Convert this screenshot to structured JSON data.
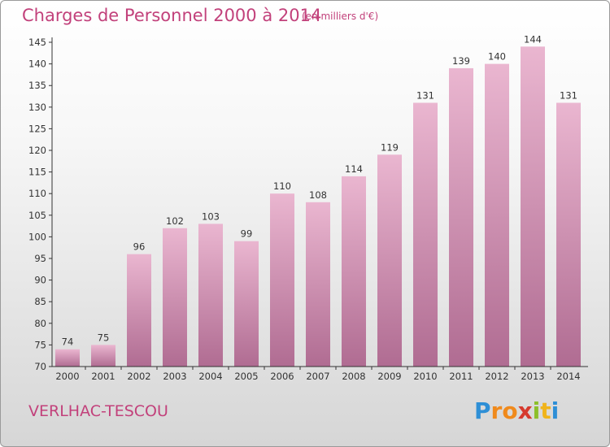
{
  "header": {
    "title": "Charges de Personnel 2000 à 2014",
    "subtitle": "(en milliers d'€)"
  },
  "footer": {
    "commune": "VERLHAC-TESCOU",
    "logo_text": "Proxiti"
  },
  "colors": {
    "title": "#c2417b",
    "bar_light": "#e8aecb",
    "bar_dark": "#b06c92",
    "axis": "#333333"
  },
  "chart_data": {
    "type": "bar",
    "title": "Charges de Personnel 2000 à 2014",
    "subtitle": "(en milliers d'€)",
    "categories": [
      "2000",
      "2001",
      "2002",
      "2003",
      "2004",
      "2005",
      "2006",
      "2007",
      "2008",
      "2009",
      "2010",
      "2011",
      "2012",
      "2013",
      "2014"
    ],
    "values": [
      74,
      75,
      96,
      102,
      103,
      99,
      110,
      108,
      114,
      119,
      131,
      139,
      140,
      144,
      131
    ],
    "ylim": [
      70,
      145
    ],
    "yticks": [
      70,
      75,
      80,
      85,
      90,
      95,
      100,
      105,
      110,
      115,
      120,
      125,
      130,
      135,
      140,
      145
    ],
    "xlabel": "",
    "ylabel": "",
    "grid": false,
    "legend": "none",
    "data_labels": true
  }
}
